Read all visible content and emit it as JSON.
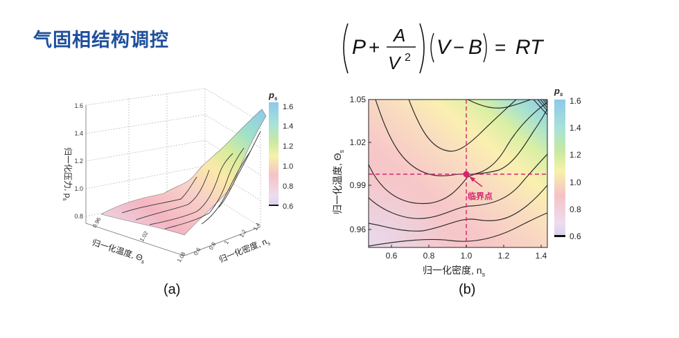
{
  "title": "气固相结构调控",
  "equation": {
    "P": "P",
    "plus": "+",
    "A": "A",
    "V2_base": "V",
    "V2_exp": "2",
    "V": "V",
    "minus": "−",
    "B": "B",
    "equals": "=",
    "RT": "RT"
  },
  "figure_a": {
    "caption": "(a)",
    "z_axis_label": "归一化压力, p",
    "z_axis_sub": "s",
    "z_ticks": [
      "1.6",
      "1.4",
      "1.2",
      "1.0",
      "0.8"
    ],
    "temp_axis_label": "归一化温度, Θ",
    "temp_axis_sub": "s",
    "temp_ticks": [
      "0.96",
      "1.02",
      "1.08"
    ],
    "density_axis_label": "归一化密度, n",
    "density_axis_sub": "s",
    "density_ticks": [
      "0.6",
      "0.8",
      "1",
      "1.2",
      "1.4"
    ],
    "colorbar_label": "p",
    "colorbar_sub": "s",
    "colorbar_ticks": [
      "1.6",
      "1.4",
      "1.2",
      "1.0",
      "0.8",
      "0.6"
    ]
  },
  "figure_b": {
    "caption": "(b)",
    "x_label": "归一化密度, n",
    "x_label_sub": "s",
    "y_label": "归一化温度, Θ",
    "y_label_sub": "s",
    "x_ticks": [
      "0.6",
      "0.8",
      "1.0",
      "1.2",
      "1.4"
    ],
    "y_ticks": [
      "1.05",
      "1.02",
      "0.99",
      "0.96"
    ],
    "critical_point_label": "临界点",
    "critical_point": {
      "n": 1.0,
      "theta": 1.0
    },
    "colorbar_label": "p",
    "colorbar_sub": "s",
    "colorbar_ticks": [
      "1.6",
      "1.4",
      "1.2",
      "1.0",
      "0.8",
      "0.6"
    ]
  },
  "colors": {
    "title": "#1f4f9c",
    "critical": "#d6246e"
  }
}
